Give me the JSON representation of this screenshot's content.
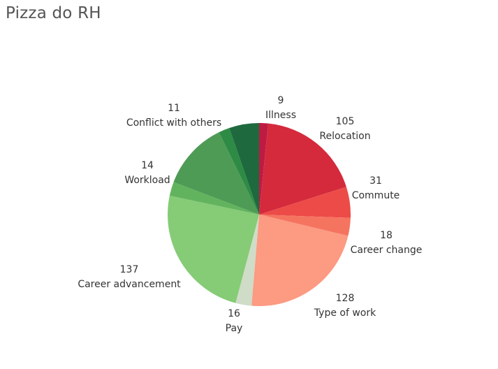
{
  "header": {
    "title": "Pizza do RH"
  },
  "chart_data": {
    "type": "pie",
    "title": "Pizza do RH",
    "slices": [
      {
        "name": "Illness",
        "value": 9,
        "color": "#BE1B43"
      },
      {
        "name": "Relocation",
        "value": 105,
        "color": "#D42A3C"
      },
      {
        "name": "Commute",
        "value": 31,
        "color": "#EC4B48"
      },
      {
        "name": "Career change",
        "value": 18,
        "color": "#F57460"
      },
      {
        "name": "Type of work",
        "value": 128,
        "color": "#FC9A82"
      },
      {
        "name": "Pay",
        "value": 16,
        "color": "#CFDCC7"
      },
      {
        "name": "Career advancement",
        "value": 137,
        "color": "#86CB76"
      },
      {
        "name": "Workload",
        "value": 14,
        "color": "#62B35E"
      },
      {
        "name": "",
        "value": 68,
        "color": "#4E9B55"
      },
      {
        "name": "Conflict with others",
        "value": 11,
        "color": "#2E8B45"
      },
      {
        "name": "",
        "value": 30,
        "color": "#1E6A3E"
      }
    ]
  }
}
